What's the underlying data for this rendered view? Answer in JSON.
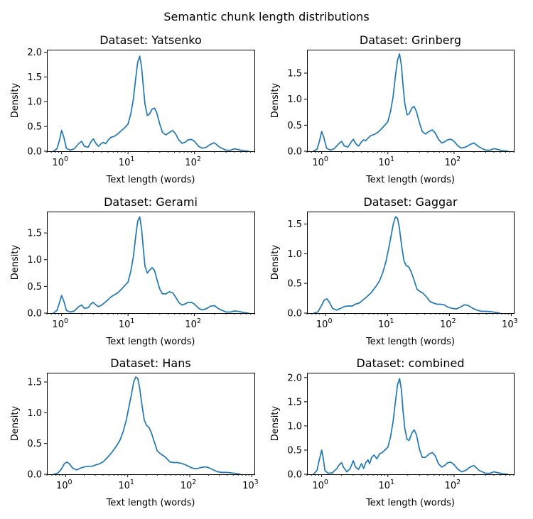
{
  "figure": {
    "title": "Semantic chunk length distributions"
  },
  "chart_data": [
    {
      "type": "line",
      "title": "Dataset: Yatsenko",
      "xlabel": "Text length (words)",
      "ylabel": "Density",
      "xscale": "log",
      "xlim": [
        0.6,
        800
      ],
      "ylim": [
        0,
        2.05
      ],
      "xticks": [
        {
          "base": "10",
          "exp": "0"
        },
        {
          "base": "10",
          "exp": "1"
        },
        {
          "base": "10",
          "exp": "2"
        }
      ],
      "yticks": [
        "0.0",
        "0.5",
        "1.0",
        "1.5",
        "2.0"
      ],
      "x": [
        0.75,
        0.85,
        0.92,
        1.0,
        1.08,
        1.18,
        1.35,
        1.55,
        1.8,
        2.0,
        2.2,
        2.5,
        2.8,
        3.0,
        3.3,
        3.6,
        4.0,
        4.3,
        4.6,
        5.0,
        5.5,
        6.2,
        7.0,
        8.0,
        9.0,
        10.0,
        11.0,
        12.0,
        13.0,
        14.0,
        15.0,
        16.0,
        17.0,
        18.0,
        19.5,
        21.0,
        23.0,
        25.0,
        27.0,
        30.0,
        33.0,
        37.0,
        42.0,
        47.0,
        52.0,
        58.0,
        65.0,
        72.0,
        80.0,
        90.0,
        100.0,
        115.0,
        130.0,
        150.0,
        175.0,
        200.0,
        240.0,
        300.0,
        350.0,
        400.0,
        470.0,
        550.0,
        650.0
      ],
      "y": [
        0.0,
        0.05,
        0.2,
        0.42,
        0.28,
        0.06,
        0.02,
        0.05,
        0.15,
        0.2,
        0.1,
        0.08,
        0.2,
        0.25,
        0.15,
        0.1,
        0.16,
        0.18,
        0.15,
        0.22,
        0.28,
        0.3,
        0.35,
        0.42,
        0.48,
        0.55,
        0.75,
        1.05,
        1.45,
        1.8,
        1.92,
        1.7,
        1.3,
        0.95,
        0.72,
        0.75,
        0.85,
        0.87,
        0.78,
        0.55,
        0.38,
        0.33,
        0.38,
        0.42,
        0.35,
        0.23,
        0.16,
        0.18,
        0.23,
        0.24,
        0.2,
        0.1,
        0.06,
        0.08,
        0.14,
        0.17,
        0.08,
        0.02,
        0.02,
        0.05,
        0.03,
        0.01,
        0.0
      ]
    },
    {
      "type": "line",
      "title": "Dataset: Grinberg",
      "xlabel": "Text length (words)",
      "ylabel": "Density",
      "xscale": "log",
      "xlim": [
        0.6,
        800
      ],
      "ylim": [
        0,
        1.95
      ],
      "xticks": [
        {
          "base": "10",
          "exp": "0"
        },
        {
          "base": "10",
          "exp": "1"
        },
        {
          "base": "10",
          "exp": "2"
        }
      ],
      "yticks": [
        "0.0",
        "0.5",
        "1.0",
        "1.5"
      ],
      "x": [
        0.75,
        0.85,
        0.92,
        1.0,
        1.08,
        1.18,
        1.35,
        1.55,
        1.8,
        2.0,
        2.2,
        2.5,
        2.8,
        3.0,
        3.3,
        3.6,
        4.0,
        4.3,
        4.6,
        5.0,
        5.5,
        6.2,
        7.0,
        8.0,
        9.0,
        10.0,
        11.0,
        12.0,
        13.0,
        14.0,
        15.0,
        16.0,
        17.0,
        18.0,
        19.5,
        21.0,
        23.0,
        25.0,
        27.0,
        30.0,
        33.0,
        37.0,
        42.0,
        47.0,
        52.0,
        58.0,
        65.0,
        72.0,
        80.0,
        90.0,
        100.0,
        115.0,
        130.0,
        150.0,
        175.0,
        200.0,
        240.0,
        300.0,
        350.0,
        400.0,
        470.0,
        550.0,
        650.0
      ],
      "y": [
        0.0,
        0.04,
        0.18,
        0.38,
        0.26,
        0.06,
        0.02,
        0.05,
        0.14,
        0.19,
        0.1,
        0.08,
        0.18,
        0.23,
        0.14,
        0.1,
        0.18,
        0.22,
        0.2,
        0.25,
        0.3,
        0.32,
        0.36,
        0.43,
        0.5,
        0.57,
        0.77,
        1.05,
        1.45,
        1.75,
        1.87,
        1.65,
        1.25,
        0.92,
        0.7,
        0.72,
        0.83,
        0.86,
        0.76,
        0.55,
        0.38,
        0.33,
        0.38,
        0.41,
        0.35,
        0.23,
        0.16,
        0.18,
        0.22,
        0.23,
        0.19,
        0.1,
        0.06,
        0.08,
        0.13,
        0.16,
        0.08,
        0.02,
        0.02,
        0.05,
        0.03,
        0.01,
        0.0
      ]
    },
    {
      "type": "line",
      "title": "Dataset: Gerami",
      "xlabel": "Text length (words)",
      "ylabel": "Density",
      "xscale": "log",
      "xlim": [
        0.6,
        800
      ],
      "ylim": [
        0,
        1.9
      ],
      "xticks": [
        {
          "base": "10",
          "exp": "0"
        },
        {
          "base": "10",
          "exp": "1"
        },
        {
          "base": "10",
          "exp": "2"
        }
      ],
      "yticks": [
        "0.0",
        "0.5",
        "1.0",
        "1.5"
      ],
      "x": [
        0.75,
        0.85,
        0.92,
        1.0,
        1.08,
        1.18,
        1.35,
        1.55,
        1.8,
        2.0,
        2.2,
        2.5,
        2.8,
        3.0,
        3.3,
        3.6,
        4.0,
        4.5,
        5.0,
        5.5,
        6.2,
        7.0,
        8.0,
        9.0,
        10.0,
        11.0,
        12.0,
        13.0,
        14.0,
        15.0,
        16.0,
        17.0,
        18.0,
        19.5,
        21.0,
        23.0,
        25.0,
        27.0,
        30.0,
        33.0,
        37.0,
        42.0,
        47.0,
        52.0,
        58.0,
        65.0,
        72.0,
        80.0,
        90.0,
        100.0,
        115.0,
        130.0,
        150.0,
        175.0,
        200.0,
        240.0,
        300.0,
        350.0,
        400.0,
        470.0,
        550.0,
        650.0
      ],
      "y": [
        0.0,
        0.05,
        0.18,
        0.33,
        0.22,
        0.05,
        0.02,
        0.04,
        0.12,
        0.15,
        0.09,
        0.1,
        0.18,
        0.2,
        0.15,
        0.12,
        0.15,
        0.2,
        0.25,
        0.3,
        0.34,
        0.38,
        0.45,
        0.52,
        0.58,
        0.78,
        1.05,
        1.42,
        1.72,
        1.8,
        1.58,
        1.2,
        0.88,
        0.75,
        0.8,
        0.85,
        0.8,
        0.65,
        0.45,
        0.36,
        0.36,
        0.4,
        0.38,
        0.3,
        0.2,
        0.15,
        0.17,
        0.2,
        0.2,
        0.17,
        0.09,
        0.06,
        0.08,
        0.13,
        0.14,
        0.07,
        0.02,
        0.02,
        0.04,
        0.03,
        0.01,
        0.0
      ]
    },
    {
      "type": "line",
      "title": "Dataset: Gaggar",
      "xlabel": "Text length (words)",
      "ylabel": "Density",
      "xscale": "log",
      "xlim": [
        0.5,
        1100
      ],
      "ylim": [
        0,
        1.71
      ],
      "xticks": [
        {
          "base": "10",
          "exp": "0"
        },
        {
          "base": "10",
          "exp": "1"
        },
        {
          "base": "10",
          "exp": "2"
        },
        {
          "base": "10",
          "exp": "3"
        }
      ],
      "yticks": [
        "0.0",
        "0.5",
        "1.0",
        "1.5"
      ],
      "x": [
        0.65,
        0.75,
        0.85,
        0.95,
        1.05,
        1.15,
        1.3,
        1.5,
        1.75,
        2.0,
        2.3,
        2.7,
        3.0,
        3.5,
        4.0,
        4.7,
        5.5,
        6.5,
        7.5,
        8.5,
        9.5,
        10.5,
        11.5,
        12.5,
        13.5,
        14.5,
        15.5,
        17.0,
        18.5,
        20.0,
        22.0,
        24.0,
        27.0,
        30.0,
        34.0,
        38.0,
        43.0,
        48.0,
        55.0,
        63.0,
        72.0,
        82.0,
        95.0,
        110.0,
        130.0,
        150.0,
        175.0,
        200.0,
        240.0,
        280.0,
        330.0,
        400.0,
        500.0,
        650.0
      ],
      "y": [
        0.0,
        0.02,
        0.12,
        0.22,
        0.24,
        0.18,
        0.08,
        0.05,
        0.08,
        0.11,
        0.12,
        0.12,
        0.15,
        0.17,
        0.22,
        0.28,
        0.35,
        0.45,
        0.55,
        0.7,
        0.88,
        1.1,
        1.32,
        1.52,
        1.62,
        1.6,
        1.45,
        1.12,
        0.88,
        0.8,
        0.78,
        0.7,
        0.55,
        0.4,
        0.36,
        0.33,
        0.27,
        0.2,
        0.17,
        0.15,
        0.15,
        0.14,
        0.1,
        0.08,
        0.07,
        0.1,
        0.14,
        0.13,
        0.08,
        0.05,
        0.03,
        0.03,
        0.02,
        0.0
      ]
    },
    {
      "type": "line",
      "title": "Dataset: Hans",
      "xlabel": "Text length (words)",
      "ylabel": "Density",
      "xscale": "log",
      "xlim": [
        0.5,
        1100
      ],
      "ylim": [
        0,
        1.65
      ],
      "xticks": [
        {
          "base": "10",
          "exp": "0"
        },
        {
          "base": "10",
          "exp": "1"
        },
        {
          "base": "10",
          "exp": "2"
        },
        {
          "base": "10",
          "exp": "3"
        }
      ],
      "yticks": [
        "0.0",
        "0.5",
        "1.0",
        "1.5"
      ],
      "x": [
        0.65,
        0.75,
        0.85,
        0.95,
        1.05,
        1.15,
        1.3,
        1.5,
        1.75,
        2.0,
        2.3,
        2.7,
        3.0,
        3.5,
        4.0,
        4.7,
        5.5,
        6.5,
        7.5,
        8.5,
        9.5,
        10.5,
        11.5,
        12.5,
        13.5,
        14.5,
        15.5,
        17.0,
        18.5,
        20.0,
        22.0,
        24.0,
        27.0,
        30.0,
        34.0,
        38.0,
        43.0,
        48.0,
        55.0,
        63.0,
        72.0,
        82.0,
        95.0,
        110.0,
        130.0,
        150.0,
        175.0,
        200.0,
        240.0,
        280.0,
        330.0,
        400.0,
        500.0,
        650.0
      ],
      "y": [
        0.0,
        0.02,
        0.08,
        0.17,
        0.2,
        0.17,
        0.1,
        0.07,
        0.1,
        0.12,
        0.13,
        0.13,
        0.15,
        0.17,
        0.2,
        0.27,
        0.35,
        0.45,
        0.55,
        0.7,
        0.88,
        1.1,
        1.3,
        1.5,
        1.58,
        1.56,
        1.42,
        1.12,
        0.88,
        0.8,
        0.76,
        0.68,
        0.52,
        0.38,
        0.33,
        0.3,
        0.25,
        0.2,
        0.19,
        0.19,
        0.18,
        0.16,
        0.13,
        0.1,
        0.09,
        0.11,
        0.12,
        0.11,
        0.07,
        0.04,
        0.03,
        0.03,
        0.02,
        0.0
      ]
    },
    {
      "type": "line",
      "title": "Dataset: combined",
      "xlabel": "Text length (words)",
      "ylabel": "Density",
      "xscale": "log",
      "xlim": [
        0.6,
        800
      ],
      "ylim": [
        0,
        2.1
      ],
      "xticks": [
        {
          "base": "10",
          "exp": "0"
        },
        {
          "base": "10",
          "exp": "1"
        },
        {
          "base": "10",
          "exp": "2"
        }
      ],
      "yticks": [
        "0.0",
        "0.5",
        "1.0",
        "1.5",
        "2.0"
      ],
      "x": [
        0.75,
        0.85,
        0.92,
        1.0,
        1.06,
        1.12,
        1.25,
        1.45,
        1.7,
        1.85,
        2.0,
        2.15,
        2.4,
        2.7,
        3.0,
        3.25,
        3.6,
        4.0,
        4.3,
        4.6,
        5.0,
        5.3,
        5.7,
        6.2,
        6.8,
        7.5,
        8.2,
        9.0,
        10.0,
        11.0,
        12.0,
        13.0,
        14.0,
        15.0,
        16.0,
        17.0,
        18.0,
        19.5,
        21.0,
        23.0,
        25.0,
        27.0,
        30.0,
        33.0,
        37.0,
        42.0,
        47.0,
        52.0,
        58.0,
        65.0,
        72.0,
        80.0,
        90.0,
        100.0,
        115.0,
        130.0,
        150.0,
        175.0,
        200.0,
        240.0,
        300.0,
        350.0,
        400.0,
        470.0,
        550.0,
        650.0
      ],
      "y": [
        0.0,
        0.08,
        0.3,
        0.5,
        0.32,
        0.08,
        0.02,
        0.03,
        0.12,
        0.2,
        0.24,
        0.14,
        0.05,
        0.12,
        0.28,
        0.15,
        0.1,
        0.22,
        0.12,
        0.23,
        0.3,
        0.22,
        0.35,
        0.4,
        0.32,
        0.42,
        0.45,
        0.5,
        0.56,
        0.78,
        1.1,
        1.5,
        1.85,
        1.98,
        1.75,
        1.3,
        0.95,
        0.72,
        0.7,
        0.85,
        0.92,
        0.82,
        0.52,
        0.35,
        0.35,
        0.42,
        0.45,
        0.38,
        0.22,
        0.15,
        0.18,
        0.24,
        0.25,
        0.2,
        0.1,
        0.05,
        0.08,
        0.15,
        0.18,
        0.08,
        0.02,
        0.02,
        0.05,
        0.03,
        0.01,
        0.0
      ]
    }
  ]
}
